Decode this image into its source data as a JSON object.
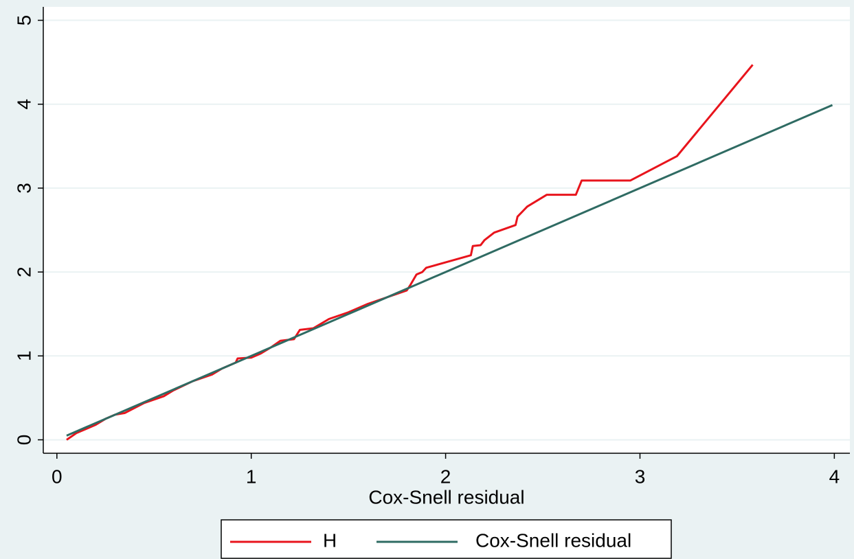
{
  "chart_data": {
    "type": "line",
    "x_label": "Cox-Snell residual",
    "xlim": [
      -0.07,
      4.08
    ],
    "ylim": [
      -0.16,
      5.16
    ],
    "xticks": [
      0,
      1,
      2,
      3,
      4
    ],
    "yticks": [
      0,
      1,
      2,
      3,
      4,
      5
    ],
    "grid": true,
    "legend": "bottom",
    "series": [
      {
        "name": "H",
        "color": "#e8141c",
        "x": [
          0.05,
          0.1,
          0.15,
          0.2,
          0.25,
          0.3,
          0.35,
          0.45,
          0.55,
          0.6,
          0.7,
          0.8,
          0.85,
          0.92,
          0.93,
          1.0,
          1.05,
          1.1,
          1.15,
          1.22,
          1.25,
          1.32,
          1.4,
          1.5,
          1.6,
          1.7,
          1.8,
          1.82,
          1.85,
          1.88,
          1.9,
          2.13,
          2.14,
          2.18,
          2.2,
          2.25,
          2.36,
          2.37,
          2.42,
          2.52,
          2.67,
          2.7,
          2.95,
          3.19,
          3.58
        ],
        "values": [
          0,
          0.08,
          0.13,
          0.18,
          0.25,
          0.3,
          0.32,
          0.44,
          0.52,
          0.59,
          0.7,
          0.78,
          0.85,
          0.92,
          0.97,
          0.98,
          1.03,
          1.1,
          1.18,
          1.2,
          1.31,
          1.33,
          1.44,
          1.52,
          1.62,
          1.7,
          1.78,
          1.85,
          1.97,
          2.0,
          2.05,
          2.2,
          2.31,
          2.32,
          2.38,
          2.47,
          2.56,
          2.66,
          2.78,
          2.92,
          2.92,
          3.09,
          3.09,
          3.38,
          4.47
        ]
      },
      {
        "name": "Cox-Snell residual",
        "color": "#2f6b63",
        "x": [
          0.05,
          3.99
        ],
        "values": [
          0.05,
          3.99
        ]
      }
    ]
  }
}
